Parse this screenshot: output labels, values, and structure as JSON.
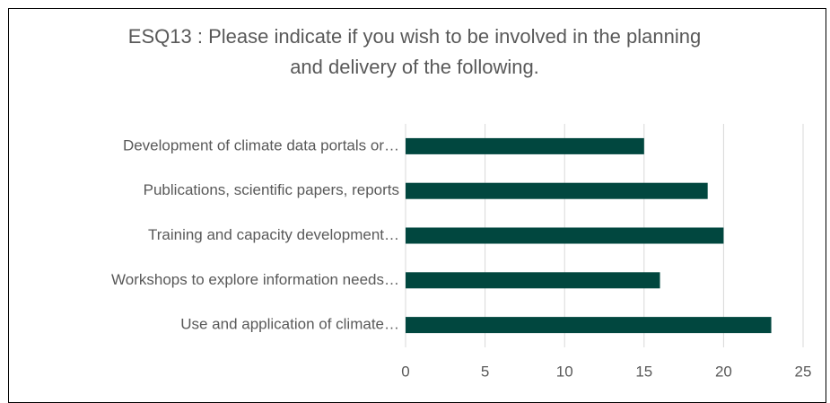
{
  "chart_data": {
    "type": "bar",
    "orientation": "horizontal",
    "title": "ESQ13 : Please indicate if you wish to be involved in the planning and delivery of the following.",
    "categories": [
      "Development of climate data portals or…",
      "Publications, scientific papers, reports",
      "Training and capacity development…",
      "Workshops to explore information needs…",
      "Use and application of climate…"
    ],
    "values": [
      15,
      19,
      20,
      16,
      23
    ],
    "color": "#01473f",
    "xlim": [
      0,
      25
    ],
    "xticks": [
      0,
      5,
      10,
      15,
      20,
      25
    ],
    "grid": true
  }
}
